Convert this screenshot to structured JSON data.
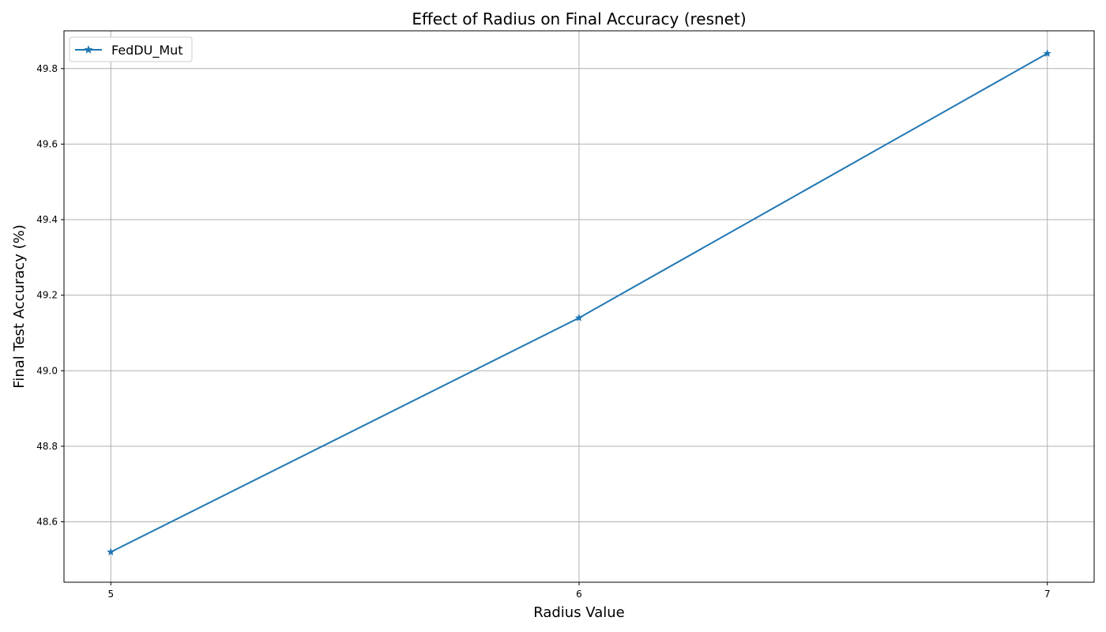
{
  "chart_data": {
    "type": "line",
    "title": "Effect of Radius on Final Accuracy (resnet)",
    "xlabel": "Radius Value",
    "ylabel": "Final Test Accuracy (%)",
    "x": [
      5,
      6,
      7
    ],
    "x_ticks": [
      "5",
      "6",
      "7"
    ],
    "xlim": [
      4.9,
      7.1
    ],
    "ylim": [
      48.44,
      49.9
    ],
    "y_ticks": [
      48.6,
      48.8,
      49.0,
      49.2,
      49.4,
      49.6,
      49.8
    ],
    "y_tick_labels": [
      "48.6",
      "48.8",
      "49.0",
      "49.2",
      "49.4",
      "49.6",
      "49.8"
    ],
    "grid": true,
    "legend": "top-left",
    "series": [
      {
        "name": "FedDU_Mut",
        "values": [
          48.52,
          49.14,
          49.84
        ],
        "color": "#1f77b4",
        "marker": "star"
      }
    ]
  }
}
